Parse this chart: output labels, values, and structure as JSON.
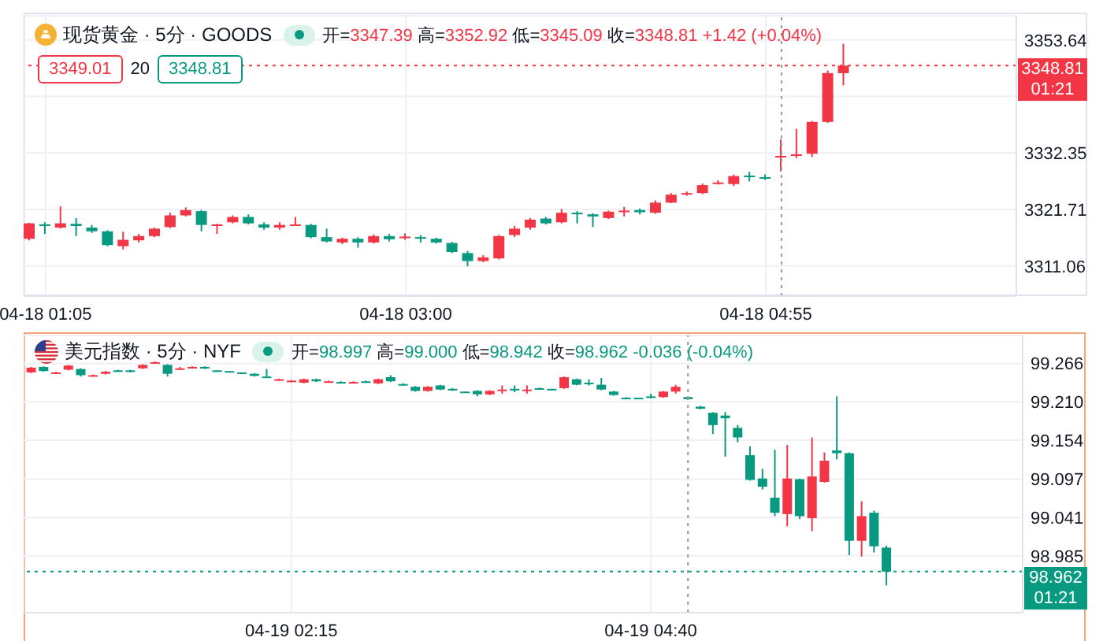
{
  "chart_data": [
    {
      "type": "candlestick",
      "title": "现货黄金 · 5分 · GOODS",
      "subtitle": "开=3347.39 高=3352.92 低=3345.09 收=3348.81 +1.42 (+0.04%)",
      "annotations": [
        "3349.01",
        "20",
        "3348.81",
        "01:21"
      ],
      "x": [
        "--04-18T01:00",
        "--04-18T01:05",
        "--04-18T01:10",
        "--04-18T01:15",
        "--04-18T01:20",
        "--04-18T01:25",
        "--04-18T01:30",
        "--04-18T01:35",
        "--04-18T01:40",
        "--04-18T01:45",
        "--04-18T01:50",
        "--04-18T01:55",
        "--04-18T02:00",
        "--04-18T02:05",
        "--04-18T02:10",
        "--04-18T02:15",
        "--04-18T02:20",
        "--04-18T02:25",
        "--04-18T02:30",
        "--04-18T02:35",
        "--04-18T02:40",
        "--04-18T02:45",
        "--04-18T02:50",
        "--04-18T02:55",
        "--04-18T03:00",
        "--04-18T03:05",
        "--04-18T03:10",
        "--04-18T03:15",
        "--04-18T03:20",
        "--04-18T03:25",
        "--04-18T03:30",
        "--04-18T03:35",
        "--04-18T03:40",
        "--04-18T03:45",
        "--04-18T03:50",
        "--04-18T03:55",
        "--04-18T04:00",
        "--04-18T04:05",
        "--04-18T04:10",
        "--04-18T04:15",
        "--04-18T04:20",
        "--04-18T04:25",
        "--04-18T04:30",
        "--04-18T04:35",
        "--04-18T04:40",
        "--04-18T04:45",
        "--04-18T04:50",
        "--04-18T04:55",
        "--04-18T05:00",
        "--04-18T05:05",
        "--04-18T05:10",
        "--04-18T05:15",
        "--04-18T05:20"
      ],
      "ohlc": [
        [
          3316.2,
          3319.2,
          3315.9,
          3319.1
        ],
        [
          3318.9,
          3319.3,
          3317.1,
          3318.7
        ],
        [
          3318.3,
          3322.3,
          3318.1,
          3319.1
        ],
        [
          3319.0,
          3320.1,
          3316.7,
          3318.6
        ],
        [
          3318.3,
          3318.8,
          3317.3,
          3317.6
        ],
        [
          3317.6,
          3317.8,
          3314.8,
          3315.0
        ],
        [
          3314.8,
          3317.5,
          3314.2,
          3316.0
        ],
        [
          3315.9,
          3317.1,
          3315.5,
          3316.7
        ],
        [
          3316.7,
          3318.3,
          3316.5,
          3318.1
        ],
        [
          3318.4,
          3321.1,
          3318.2,
          3320.6
        ],
        [
          3320.6,
          3322.1,
          3320.4,
          3321.6
        ],
        [
          3321.4,
          3321.6,
          3317.6,
          3318.8
        ],
        [
          3318.7,
          3319.0,
          3317.1,
          3318.9
        ],
        [
          3319.3,
          3320.6,
          3319.1,
          3320.3
        ],
        [
          3320.3,
          3320.8,
          3318.9,
          3319.1
        ],
        [
          3318.9,
          3319.3,
          3317.9,
          3318.3
        ],
        [
          3318.3,
          3319.3,
          3317.9,
          3318.8
        ],
        [
          3318.8,
          3320.3,
          3318.6,
          3318.9
        ],
        [
          3318.8,
          3319.0,
          3316.3,
          3316.5
        ],
        [
          3316.5,
          3318.1,
          3315.5,
          3315.7
        ],
        [
          3315.5,
          3316.4,
          3315.2,
          3316.2
        ],
        [
          3316.2,
          3316.5,
          3314.5,
          3315.5
        ],
        [
          3315.5,
          3317.0,
          3315.3,
          3316.7
        ],
        [
          3316.7,
          3317.1,
          3315.7,
          3316.1
        ],
        [
          3316.4,
          3317.2,
          3316.0,
          3316.6
        ],
        [
          3316.5,
          3316.9,
          3315.5,
          3316.3
        ],
        [
          3316.2,
          3316.4,
          3315.3,
          3315.5
        ],
        [
          3315.4,
          3315.6,
          3313.5,
          3313.7
        ],
        [
          3313.5,
          3313.9,
          3311.0,
          3312.0
        ],
        [
          3312.0,
          3313.1,
          3311.8,
          3312.7
        ],
        [
          3312.5,
          3316.9,
          3312.3,
          3316.7
        ],
        [
          3316.9,
          3318.6,
          3316.5,
          3318.1
        ],
        [
          3318.3,
          3320.1,
          3317.9,
          3319.8
        ],
        [
          3320.0,
          3320.3,
          3318.9,
          3319.1
        ],
        [
          3319.3,
          3321.8,
          3319.1,
          3321.1
        ],
        [
          3321.1,
          3321.4,
          3319.1,
          3320.8
        ],
        [
          3320.8,
          3321.0,
          3318.4,
          3320.4
        ],
        [
          3320.1,
          3321.5,
          3319.9,
          3321.3
        ],
        [
          3321.3,
          3322.2,
          3320.4,
          3321.5
        ],
        [
          3321.6,
          3321.9,
          3320.8,
          3321.2
        ],
        [
          3321.1,
          3323.4,
          3320.9,
          3323.0
        ],
        [
          3323.0,
          3324.8,
          3322.9,
          3324.5
        ],
        [
          3324.6,
          3325.1,
          3324.3,
          3324.8
        ],
        [
          3324.8,
          3326.6,
          3324.6,
          3326.3
        ],
        [
          3326.6,
          3327.2,
          3326.4,
          3326.8
        ],
        [
          3326.5,
          3328.3,
          3326.1,
          3328.0
        ],
        [
          3328.1,
          3328.8,
          3327.0,
          3327.9
        ],
        [
          3327.8,
          3328.3,
          3327.3,
          3327.6
        ],
        [
          3331.6,
          3334.9,
          3328.9,
          3331.8
        ],
        [
          3331.8,
          3336.9,
          3331.4,
          3332.1
        ],
        [
          3332.2,
          3338.4,
          3331.6,
          3338.2
        ],
        [
          3338.2,
          3347.9,
          3338.0,
          3347.4
        ],
        [
          3347.39,
          3352.92,
          3345.09,
          3348.81
        ]
      ],
      "colors": [
        "#f23645",
        "#089981",
        "#f23645",
        "#089981",
        "#089981",
        "#089981",
        "#f23645",
        "#f23645",
        "#f23645",
        "#f23645",
        "#f23645",
        "#089981",
        "#f23645",
        "#f23645",
        "#089981",
        "#089981",
        "#f23645",
        "#f23645",
        "#089981",
        "#089981",
        "#f23645",
        "#089981",
        "#f23645",
        "#089981",
        "#f23645",
        "#089981",
        "#089981",
        "#089981",
        "#089981",
        "#f23645",
        "#f23645",
        "#f23645",
        "#f23645",
        "#089981",
        "#f23645",
        "#089981",
        "#089981",
        "#f23645",
        "#f23645",
        "#089981",
        "#f23645",
        "#f23645",
        "#f23645",
        "#f23645",
        "#f23645",
        "#f23645",
        "#089981",
        "#089981",
        "#f23645",
        "#f23645",
        "#f23645",
        "#f23645",
        "#f23645"
      ],
      "xlim": [
        "--04-18T00:58",
        "--04-18T06:15"
      ],
      "ylim": [
        3305.4,
        3358.2
      ],
      "xticks": [
        {
          "value": "--04-18T01:05",
          "label": "04-18 01:05"
        },
        {
          "value": "--04-18T03:00",
          "label": "04-18 03:00"
        },
        {
          "value": "--04-18T04:55",
          "label": "04-18 04:55"
        }
      ],
      "yticks": [
        3311.06,
        3321.71,
        3332.35,
        {
          "value": 3342.99,
          "label": null
        },
        3353.64
      ],
      "grid": true,
      "ref_lines": [
        {
          "axis": "y",
          "value": 3348.81,
          "label": "3348.81",
          "color": "#f23645",
          "line_style": "dotted"
        },
        {
          "axis": "x",
          "value": "--04-18T05:00",
          "color": "#9598a1",
          "line_style": "dotted"
        }
      ]
    },
    {
      "type": "candlestick",
      "title": "美元指数 · 5分 · NYF",
      "subtitle": "开=98.997 高=99.000 低=98.942 收=98.962 -0.036 (-0.04%)",
      "annotations": [
        "01:21"
      ],
      "x": [
        "--04-19T00:30",
        "--04-19T00:35",
        "--04-19T00:40",
        "--04-19T00:45",
        "--04-19T00:50",
        "--04-19T00:55",
        "--04-19T01:00",
        "--04-19T01:05",
        "--04-19T01:10",
        "--04-19T01:15",
        "--04-19T01:20",
        "--04-19T01:25",
        "--04-19T01:30",
        "--04-19T01:35",
        "--04-19T01:40",
        "--04-19T01:45",
        "--04-19T01:50",
        "--04-19T01:55",
        "--04-19T02:00",
        "--04-19T02:05",
        "--04-19T02:10",
        "--04-19T02:15",
        "--04-19T02:20",
        "--04-19T02:25",
        "--04-19T02:30",
        "--04-19T02:35",
        "--04-19T02:40",
        "--04-19T02:45",
        "--04-19T02:50",
        "--04-19T02:55",
        "--04-19T03:00",
        "--04-19T03:05",
        "--04-19T03:10",
        "--04-19T03:15",
        "--04-19T03:20",
        "--04-19T03:25",
        "--04-19T03:30",
        "--04-19T03:35",
        "--04-19T03:40",
        "--04-19T03:45",
        "--04-19T03:50",
        "--04-19T03:55",
        "--04-19T04:00",
        "--04-19T04:05",
        "--04-19T04:10",
        "--04-19T04:15",
        "--04-19T04:20",
        "--04-19T04:25",
        "--04-19T04:30",
        "--04-19T04:35",
        "--04-19T04:40",
        "--04-19T04:45",
        "--04-19T04:50",
        "--04-19T04:55",
        "--04-19T05:00",
        "--04-19T05:05",
        "--04-19T05:10",
        "--04-19T05:15",
        "--04-19T05:20",
        "--04-19T05:25",
        "--04-19T05:30",
        "--04-19T05:35",
        "--04-19T05:40",
        "--04-19T05:45",
        "--04-19T05:50",
        "--04-19T05:55",
        "--04-19T06:00",
        "--04-19T06:05",
        "--04-19T06:10",
        "--04-19T06:15"
      ],
      "ohlc": [
        [
          99.253,
          99.261,
          99.252,
          99.26
        ],
        [
          99.261,
          99.262,
          99.254,
          99.255
        ],
        [
          99.252,
          99.254,
          99.251,
          99.253
        ],
        [
          99.257,
          99.264,
          99.256,
          99.263
        ],
        [
          99.258,
          99.259,
          99.247,
          99.249
        ],
        [
          99.248,
          99.25,
          99.247,
          99.249
        ],
        [
          99.251,
          99.255,
          99.25,
          99.254
        ],
        [
          99.256,
          99.257,
          99.254,
          99.255
        ],
        [
          99.256,
          99.257,
          99.253,
          99.255
        ],
        [
          99.259,
          99.265,
          99.258,
          99.264
        ],
        [
          99.267,
          99.269,
          99.266,
          99.268
        ],
        [
          99.264,
          99.265,
          99.247,
          99.251
        ],
        [
          99.258,
          99.261,
          99.257,
          99.259
        ],
        [
          99.26,
          99.262,
          99.259,
          99.261
        ],
        [
          99.261,
          99.262,
          99.258,
          99.26
        ],
        [
          99.256,
          99.256,
          99.255,
          99.255
        ],
        [
          99.255,
          99.255,
          99.253,
          99.254
        ],
        [
          99.253,
          99.253,
          99.251,
          99.252
        ],
        [
          99.251,
          99.252,
          99.247,
          99.248
        ],
        [
          99.247,
          99.258,
          99.245,
          99.245
        ],
        [
          99.242,
          99.244,
          99.241,
          99.243
        ],
        [
          99.24,
          99.242,
          99.239,
          99.241
        ],
        [
          99.238,
          99.244,
          99.237,
          99.243
        ],
        [
          99.243,
          99.244,
          99.239,
          99.24
        ],
        [
          99.239,
          99.241,
          99.238,
          99.24
        ],
        [
          99.239,
          99.24,
          99.237,
          99.238
        ],
        [
          99.238,
          99.24,
          99.237,
          99.239
        ],
        [
          99.24,
          99.241,
          99.238,
          99.239
        ],
        [
          99.237,
          99.244,
          99.236,
          99.243
        ],
        [
          99.246,
          99.249,
          99.239,
          99.24
        ],
        [
          99.236,
          99.237,
          99.234,
          99.235
        ],
        [
          99.232,
          99.233,
          99.225,
          99.226
        ],
        [
          99.226,
          99.233,
          99.225,
          99.232
        ],
        [
          99.234,
          99.235,
          99.227,
          99.228
        ],
        [
          99.229,
          99.23,
          99.226,
          99.228
        ],
        [
          99.225,
          99.225,
          99.223,
          99.224
        ],
        [
          99.226,
          99.227,
          99.218,
          99.221
        ],
        [
          99.221,
          99.227,
          99.22,
          99.226
        ],
        [
          99.227,
          99.234,
          99.222,
          99.228
        ],
        [
          99.229,
          99.234,
          99.224,
          99.228
        ],
        [
          99.227,
          99.234,
          99.222,
          99.228
        ],
        [
          99.23,
          99.231,
          99.228,
          99.229
        ],
        [
          99.229,
          99.229,
          99.227,
          99.228
        ],
        [
          99.23,
          99.247,
          99.229,
          99.246
        ],
        [
          99.243,
          99.244,
          99.234,
          99.235
        ],
        [
          99.238,
          99.243,
          99.234,
          99.237
        ],
        [
          99.235,
          99.245,
          99.227,
          99.228
        ],
        [
          99.225,
          99.226,
          99.219,
          99.22
        ],
        [
          99.216,
          99.217,
          99.214,
          99.215
        ],
        [
          99.216,
          99.216,
          99.214,
          99.215
        ],
        [
          99.218,
          99.222,
          99.215,
          99.217
        ],
        [
          99.217,
          99.226,
          99.216,
          99.225
        ],
        [
          99.225,
          99.235,
          99.222,
          99.232
        ],
        [
          99.217,
          99.218,
          99.213,
          99.214
        ],
        [
          99.203,
          99.204,
          99.199,
          99.2
        ],
        [
          99.194,
          99.195,
          99.163,
          99.176
        ],
        [
          99.19,
          99.195,
          99.13,
          99.186
        ],
        [
          99.172,
          99.176,
          99.151,
          99.158
        ],
        [
          99.132,
          99.145,
          99.095,
          99.096
        ],
        [
          99.098,
          99.112,
          99.082,
          99.086
        ],
        [
          99.07,
          99.14,
          99.043,
          99.048
        ],
        [
          99.046,
          99.147,
          99.028,
          99.098
        ],
        [
          99.097,
          99.098,
          99.039,
          99.043
        ],
        [
          99.04,
          99.158,
          99.021,
          99.101
        ],
        [
          99.093,
          99.136,
          99.092,
          99.124
        ],
        [
          99.139,
          99.218,
          99.126,
          99.135
        ],
        [
          99.135,
          99.136,
          98.986,
          99.007
        ],
        [
          99.007,
          99.065,
          98.984,
          99.043
        ],
        [
          99.048,
          99.051,
          98.99,
          98.999
        ],
        [
          98.997,
          99.0,
          98.942,
          98.962
        ]
      ],
      "colors": [
        "#f23645",
        "#089981",
        "#f23645",
        "#f23645",
        "#089981",
        "#f23645",
        "#f23645",
        "#089981",
        "#089981",
        "#f23645",
        "#f23645",
        "#089981",
        "#f23645",
        "#f23645",
        "#089981",
        "#089981",
        "#089981",
        "#089981",
        "#089981",
        "#089981",
        "#f23645",
        "#f23645",
        "#f23645",
        "#089981",
        "#f23645",
        "#089981",
        "#f23645",
        "#089981",
        "#f23645",
        "#089981",
        "#089981",
        "#089981",
        "#f23645",
        "#089981",
        "#089981",
        "#089981",
        "#089981",
        "#f23645",
        "#f23645",
        "#089981",
        "#f23645",
        "#089981",
        "#089981",
        "#f23645",
        "#089981",
        "#089981",
        "#089981",
        "#089981",
        "#089981",
        "#089981",
        "#089981",
        "#f23645",
        "#f23645",
        "#089981",
        "#089981",
        "#089981",
        "#089981",
        "#089981",
        "#089981",
        "#089981",
        "#089981",
        "#f23645",
        "#089981",
        "#f23645",
        "#f23645",
        "#089981",
        "#089981",
        "#f23645",
        "#089981",
        "#089981"
      ],
      "xlim": [
        "--04-19T00:27",
        "--04-19T07:10"
      ],
      "ylim": [
        98.902,
        99.307
      ],
      "xticks": [
        {
          "value": "--04-19T02:15",
          "label": "04-19 02:15"
        },
        {
          "value": "--04-19T04:40",
          "label": "04-19 04:40"
        }
      ],
      "yticks": [
        98.985,
        99.041,
        99.097,
        99.154,
        {
          "value": 99.21,
          "label": "99.210"
        },
        99.266
      ],
      "grid": true,
      "ref_lines": [
        {
          "axis": "y",
          "value": 98.962,
          "label": "98.962",
          "color": "#089981",
          "line_style": "dotted"
        },
        {
          "axis": "x",
          "value": "--04-19T04:55",
          "color": "#9598a1",
          "line_style": "dotted"
        }
      ]
    }
  ]
}
